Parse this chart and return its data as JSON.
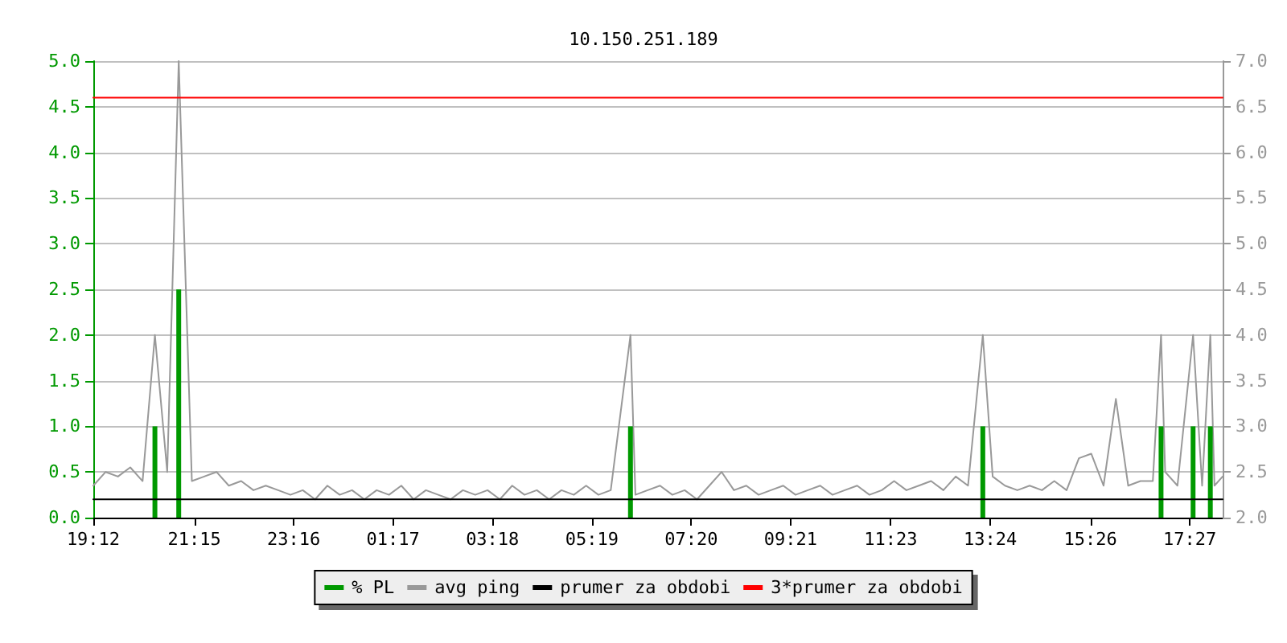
{
  "chart_data": {
    "type": "line",
    "title": "10.150.251.189",
    "xlim": [
      "--01-01T19:12",
      "--01-02T18:07"
    ],
    "xticks": [
      {
        "value": "--01-01T19:12",
        "label": "19:12"
      },
      {
        "value": "--01-01T21:15",
        "label": "21:15"
      },
      {
        "value": "--01-01T23:16",
        "label": "23:16"
      },
      {
        "value": "--01-02T01:17",
        "label": "01:17"
      },
      {
        "value": "--01-02T03:18",
        "label": "03:18"
      },
      {
        "value": "--01-02T05:19",
        "label": "05:19"
      },
      {
        "value": "--01-02T07:20",
        "label": "07:20"
      },
      {
        "value": "--01-02T09:21",
        "label": "09:21"
      },
      {
        "value": "--01-02T11:23",
        "label": "11:23"
      },
      {
        "value": "--01-02T13:24",
        "label": "13:24"
      },
      {
        "value": "--01-02T15:26",
        "label": "15:26"
      },
      {
        "value": "--01-02T17:27",
        "label": "17:27"
      }
    ],
    "ylim": [
      0,
      5
    ],
    "yticks": [
      {
        "value": 0,
        "label": "0.0"
      },
      0.5,
      {
        "value": 1,
        "label": "1.0"
      },
      1.5,
      {
        "value": 2,
        "label": "2.0"
      },
      2.5,
      {
        "value": 3,
        "label": "3.0"
      },
      3.5,
      {
        "value": 4,
        "label": "4.0"
      },
      4.5,
      {
        "value": 5,
        "label": "5.0"
      }
    ],
    "y2lim": [
      2,
      7
    ],
    "y2ticks": [
      {
        "value": 2,
        "label": "2.0"
      },
      2.5,
      {
        "value": 3,
        "label": "3.0"
      },
      3.5,
      {
        "value": 4,
        "label": "4.0"
      },
      4.5,
      {
        "value": 5,
        "label": "5.0"
      },
      5.5,
      {
        "value": 6,
        "label": "6.0"
      },
      6.5,
      {
        "value": 7,
        "label": "7.0"
      }
    ],
    "grid": "y",
    "legend": "bottom",
    "marker": "none",
    "line_style": "solid",
    "series": [
      {
        "name": "% PL",
        "type": "bar",
        "color": "#009900",
        "x": [
          "--01-01T20:27",
          "--01-01T20:56",
          "--01-02T06:06",
          "--01-02T13:15",
          "--01-02T16:52",
          "--01-02T17:31",
          "--01-02T17:52"
        ],
        "values": [
          1,
          2.5,
          1,
          1,
          1,
          1,
          1
        ]
      },
      {
        "name": "avg ping",
        "axis": "y2",
        "color": "#999999",
        "x": [
          "--01-01T19:12",
          "--01-01T19:27",
          "--01-01T19:42",
          "--01-01T19:57",
          "--01-01T20:12",
          "--01-01T20:27",
          "--01-01T20:42",
          "--01-01T20:56",
          "--01-01T21:12",
          "--01-01T21:27",
          "--01-01T21:42",
          "--01-01T21:57",
          "--01-01T22:12",
          "--01-01T22:27",
          "--01-01T22:42",
          "--01-01T22:57",
          "--01-01T23:12",
          "--01-01T23:27",
          "--01-01T23:42",
          "--01-01T23:57",
          "--01-02T00:12",
          "--01-02T00:27",
          "--01-02T00:42",
          "--01-02T00:57",
          "--01-02T01:12",
          "--01-02T01:27",
          "--01-02T01:42",
          "--01-02T01:57",
          "--01-02T02:12",
          "--01-02T02:27",
          "--01-02T02:42",
          "--01-02T02:57",
          "--01-02T03:12",
          "--01-02T03:27",
          "--01-02T03:42",
          "--01-02T03:57",
          "--01-02T04:12",
          "--01-02T04:27",
          "--01-02T04:42",
          "--01-02T04:57",
          "--01-02T05:12",
          "--01-02T05:27",
          "--01-02T05:42",
          "--01-02T06:06",
          "--01-02T06:12",
          "--01-02T06:27",
          "--01-02T06:42",
          "--01-02T06:57",
          "--01-02T07:12",
          "--01-02T07:27",
          "--01-02T07:42",
          "--01-02T07:57",
          "--01-02T08:12",
          "--01-02T08:27",
          "--01-02T08:42",
          "--01-02T08:57",
          "--01-02T09:12",
          "--01-02T09:27",
          "--01-02T09:42",
          "--01-02T09:57",
          "--01-02T10:12",
          "--01-02T10:27",
          "--01-02T10:42",
          "--01-02T10:57",
          "--01-02T11:12",
          "--01-02T11:27",
          "--01-02T11:42",
          "--01-02T11:57",
          "--01-02T12:12",
          "--01-02T12:27",
          "--01-02T12:42",
          "--01-02T12:57",
          "--01-02T13:15",
          "--01-02T13:27",
          "--01-02T13:42",
          "--01-02T13:57",
          "--01-02T14:12",
          "--01-02T14:27",
          "--01-02T14:42",
          "--01-02T14:57",
          "--01-02T15:12",
          "--01-02T15:27",
          "--01-02T15:42",
          "--01-02T15:57",
          "--01-02T16:12",
          "--01-02T16:27",
          "--01-02T16:42",
          "--01-02T16:52",
          "--01-02T16:57",
          "--01-02T17:12",
          "--01-02T17:31",
          "--01-02T17:42",
          "--01-02T17:52",
          "--01-02T17:57",
          "--01-02T18:07"
        ],
        "values": [
          2.35,
          2.5,
          2.45,
          2.55,
          2.4,
          4.0,
          2.5,
          7.0,
          2.4,
          2.45,
          2.5,
          2.35,
          2.4,
          2.3,
          2.35,
          2.3,
          2.25,
          2.3,
          2.2,
          2.35,
          2.25,
          2.3,
          2.2,
          2.3,
          2.25,
          2.35,
          2.2,
          2.3,
          2.25,
          2.2,
          2.3,
          2.25,
          2.3,
          2.2,
          2.35,
          2.25,
          2.3,
          2.2,
          2.3,
          2.25,
          2.35,
          2.25,
          2.3,
          4.0,
          2.25,
          2.3,
          2.35,
          2.25,
          2.3,
          2.2,
          2.35,
          2.5,
          2.3,
          2.35,
          2.25,
          2.3,
          2.35,
          2.25,
          2.3,
          2.35,
          2.25,
          2.3,
          2.35,
          2.25,
          2.3,
          2.4,
          2.3,
          2.35,
          2.4,
          2.3,
          2.45,
          2.35,
          4.0,
          2.45,
          2.35,
          2.3,
          2.35,
          2.3,
          2.4,
          2.3,
          2.65,
          2.7,
          2.35,
          3.3,
          2.35,
          2.4,
          2.4,
          4.0,
          2.5,
          2.35,
          4.0,
          2.35,
          4.0,
          2.35,
          2.45
        ]
      },
      {
        "name": "prumer za obdobi",
        "axis": "y2",
        "color": "#000000",
        "x": [
          "--01-01T19:12",
          "--01-02T18:07"
        ],
        "values": [
          2.2,
          2.2
        ]
      },
      {
        "name": "3*prumer za obdobi",
        "axis": "y2",
        "color": "#ff0000",
        "x": [
          "--01-01T19:12",
          "--01-02T18:07"
        ],
        "values": [
          6.6,
          6.6
        ]
      }
    ]
  }
}
